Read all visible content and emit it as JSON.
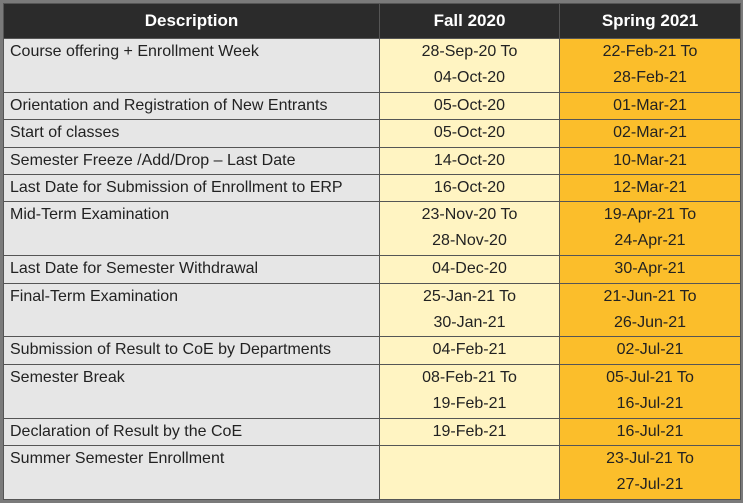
{
  "header": {
    "description": "Description",
    "fall": "Fall 2020",
    "spring": "Spring 2021"
  },
  "rows": [
    {
      "description": "Course offering + Enrollment Week",
      "fall": [
        "28-Sep-20 To",
        "04-Oct-20"
      ],
      "spring": [
        "22-Feb-21 To",
        "28-Feb-21"
      ]
    },
    {
      "description": "Orientation and Registration of New Entrants",
      "fall": [
        "05-Oct-20"
      ],
      "spring": [
        "01-Mar-21"
      ]
    },
    {
      "description": "Start of classes",
      "fall": [
        "05-Oct-20"
      ],
      "spring": [
        "02-Mar-21"
      ]
    },
    {
      "description": "Semester Freeze /Add/Drop – Last Date",
      "fall": [
        "14-Oct-20"
      ],
      "spring": [
        "10-Mar-21"
      ]
    },
    {
      "description": "Last Date for Submission of Enrollment to ERP",
      "fall": [
        "16-Oct-20"
      ],
      "spring": [
        "12-Mar-21"
      ]
    },
    {
      "description": "Mid-Term Examination",
      "fall": [
        "23-Nov-20 To",
        "28-Nov-20"
      ],
      "spring": [
        "19-Apr-21 To",
        "24-Apr-21"
      ]
    },
    {
      "description": "Last Date for Semester Withdrawal",
      "fall": [
        "04-Dec-20"
      ],
      "spring": [
        "30-Apr-21"
      ]
    },
    {
      "description": "Final-Term Examination",
      "fall": [
        "25-Jan-21 To",
        "30-Jan-21"
      ],
      "spring": [
        "21-Jun-21 To",
        "26-Jun-21"
      ]
    },
    {
      "description": "Submission of Result to CoE by Departments",
      "fall": [
        "04-Feb-21"
      ],
      "spring": [
        "02-Jul-21"
      ]
    },
    {
      "description": "Semester Break",
      "fall": [
        "08-Feb-21 To",
        "19-Feb-21"
      ],
      "spring": [
        "05-Jul-21 To",
        "16-Jul-21"
      ]
    },
    {
      "description": "Declaration of Result by the CoE",
      "fall": [
        "19-Feb-21"
      ],
      "spring": [
        "16-Jul-21"
      ]
    },
    {
      "description": "Summer Semester Enrollment",
      "fall": [],
      "spring": [
        "23-Jul-21 To",
        "27-Jul-21"
      ]
    }
  ],
  "colors": {
    "header_bg": "#2b2b2b",
    "description_bg": "#e6e6e6",
    "fall_bg": "#fff4c2",
    "spring_bg": "#fbbe2b"
  }
}
